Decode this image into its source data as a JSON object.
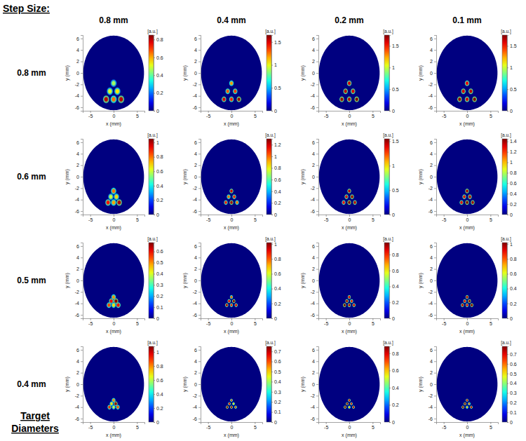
{
  "figure": {
    "title": "Step Size:",
    "columns": [
      "0.8 mm",
      "0.4 mm",
      "0.2 mm",
      "0.1 mm"
    ],
    "rows": [
      "0.8 mm",
      "0.6 mm",
      "0.5 mm",
      "0.4 mm"
    ],
    "row_title": [
      "Target",
      "Diameters"
    ]
  },
  "chart_data": [
    {
      "type": "heatmap",
      "xlabel": "x (mm)",
      "ylabel": "y (mm)",
      "xlim": [
        -6.6,
        6.6
      ],
      "ylim": [
        -6.6,
        6.6
      ],
      "xticks": [
        -5,
        0,
        5
      ],
      "yticks": [
        -6,
        -4,
        -2,
        0,
        2,
        4,
        6
      ],
      "field_radius": 6.5,
      "colorbar": {
        "label": "[a.u.]",
        "range": [
          0,
          0.85
        ],
        "ticks": [
          0,
          0.2,
          0.4,
          0.6,
          0.8
        ]
      },
      "spots": {
        "x": [
          0,
          -0.8,
          0.8,
          -1.6,
          0,
          1.6
        ],
        "y": [
          -1.8,
          -3.2,
          -3.2,
          -4.6,
          -4.6,
          -4.6
        ],
        "values": [
          0.45,
          0.5,
          0.55,
          0.8,
          0.65,
          0.8
        ],
        "sizes": [
          1.6,
          1.6,
          1.6,
          1.6,
          1.6,
          1.6
        ]
      }
    },
    {
      "type": "heatmap",
      "xlabel": "x (mm)",
      "ylabel": "y (mm)",
      "xlim": [
        -6.6,
        6.6
      ],
      "ylim": [
        -6.6,
        6.6
      ],
      "xticks": [
        -5,
        0,
        5
      ],
      "yticks": [
        -6,
        -4,
        -2,
        0,
        2,
        4,
        6
      ],
      "field_radius": 6.5,
      "colorbar": {
        "label": "[a.u.]",
        "range": [
          0,
          1.65
        ],
        "ticks": [
          0,
          0.5,
          1,
          1.5
        ]
      },
      "spots": {
        "x": [
          0,
          -0.8,
          0.8,
          -1.6,
          0,
          1.6
        ],
        "y": [
          -1.8,
          -3.2,
          -3.2,
          -4.6,
          -4.6,
          -4.6
        ],
        "values": [
          1.2,
          1.3,
          1.35,
          1.5,
          1.4,
          1.6
        ],
        "sizes": [
          1.2,
          1.2,
          1.2,
          1.2,
          1.2,
          1.2
        ]
      }
    },
    {
      "type": "heatmap",
      "xlabel": "x (mm)",
      "ylabel": "y (mm)",
      "xlim": [
        -6.6,
        6.6
      ],
      "ylim": [
        -6.6,
        6.6
      ],
      "xticks": [
        -5,
        0,
        5
      ],
      "yticks": [
        -6,
        -4,
        -2,
        0,
        2,
        4,
        6
      ],
      "field_radius": 6.5,
      "colorbar": {
        "label": "[a.u.]",
        "range": [
          0,
          1.75
        ],
        "ticks": [
          0,
          0.5,
          1,
          1.5
        ]
      },
      "spots": {
        "x": [
          0,
          -0.8,
          0.8,
          -1.6,
          0,
          1.6
        ],
        "y": [
          -1.8,
          -3.2,
          -3.2,
          -4.6,
          -4.6,
          -4.6
        ],
        "values": [
          1.6,
          1.65,
          1.6,
          1.7,
          1.65,
          1.75
        ],
        "sizes": [
          1.2,
          1.2,
          1.2,
          1.2,
          1.2,
          1.2
        ]
      }
    },
    {
      "type": "heatmap",
      "xlabel": "x (mm)",
      "ylabel": "y (mm)",
      "xlim": [
        -6.6,
        6.6
      ],
      "ylim": [
        -6.6,
        6.6
      ],
      "xticks": [
        -5,
        0,
        5
      ],
      "yticks": [
        -6,
        -4,
        -2,
        0,
        2,
        4,
        6
      ],
      "field_radius": 6.5,
      "colorbar": {
        "label": "[a.u.]",
        "range": [
          0,
          1.75
        ],
        "ticks": [
          0,
          0.5,
          1,
          1.5
        ]
      },
      "spots": {
        "x": [
          0,
          -0.8,
          0.8,
          -1.6,
          0,
          1.6
        ],
        "y": [
          -1.8,
          -3.2,
          -3.2,
          -4.6,
          -4.6,
          -4.6
        ],
        "values": [
          1.55,
          1.6,
          1.65,
          1.7,
          1.6,
          1.75
        ],
        "sizes": [
          1.2,
          1.2,
          1.2,
          1.2,
          1.2,
          1.2
        ]
      }
    },
    {
      "type": "heatmap",
      "xlabel": "x (mm)",
      "ylabel": "y (mm)",
      "xlim": [
        -6.6,
        6.6
      ],
      "ylim": [
        -6.6,
        6.6
      ],
      "xticks": [
        -5,
        0,
        5
      ],
      "yticks": [
        -6,
        -4,
        -2,
        0,
        2,
        4,
        6
      ],
      "field_radius": 6.5,
      "colorbar": {
        "label": "[a.u.]",
        "range": [
          0,
          1.05
        ],
        "ticks": [
          0,
          0.2,
          0.4,
          0.6,
          0.8,
          1
        ]
      },
      "spots": {
        "x": [
          0,
          -0.6,
          0.6,
          -1.2,
          0,
          1.2
        ],
        "y": [
          -2.5,
          -3.5,
          -3.5,
          -4.5,
          -4.5,
          -4.5
        ],
        "values": [
          0.8,
          0.6,
          0.7,
          0.9,
          0.75,
          1.0
        ],
        "sizes": [
          1.4,
          1.4,
          1.4,
          1.4,
          1.4,
          1.4
        ]
      }
    },
    {
      "type": "heatmap",
      "xlabel": "x (mm)",
      "ylabel": "y (mm)",
      "xlim": [
        -6.6,
        6.6
      ],
      "ylim": [
        -6.6,
        6.6
      ],
      "xticks": [
        -5,
        0,
        5
      ],
      "yticks": [
        -6,
        -4,
        -2,
        0,
        2,
        4,
        6
      ],
      "field_radius": 6.5,
      "colorbar": {
        "label": "[a.u.]",
        "range": [
          0,
          1.3
        ],
        "ticks": [
          0,
          0.2,
          0.4,
          0.6,
          0.8,
          1,
          1.2
        ]
      },
      "spots": {
        "x": [
          0,
          -0.6,
          0.6,
          -1.2,
          0,
          1.2
        ],
        "y": [
          -2.5,
          -3.5,
          -3.5,
          -4.5,
          -4.5,
          -4.5
        ],
        "values": [
          1.2,
          1.0,
          1.1,
          1.1,
          1.25,
          1.0
        ],
        "sizes": [
          1.0,
          1.0,
          1.0,
          1.0,
          1.0,
          1.0
        ]
      }
    },
    {
      "type": "heatmap",
      "xlabel": "x (mm)",
      "ylabel": "y (mm)",
      "xlim": [
        -6.6,
        6.6
      ],
      "ylim": [
        -6.6,
        6.6
      ],
      "xticks": [
        -5,
        0,
        5
      ],
      "yticks": [
        -6,
        -4,
        -2,
        0,
        2,
        4,
        6
      ],
      "field_radius": 6.5,
      "colorbar": {
        "label": "[a.u.]",
        "range": [
          0,
          1.55
        ],
        "ticks": [
          0,
          0.5,
          1,
          1.5
        ]
      },
      "spots": {
        "x": [
          0,
          -0.6,
          0.6,
          -1.2,
          0,
          1.2
        ],
        "y": [
          -2.5,
          -3.5,
          -3.5,
          -4.5,
          -4.5,
          -4.5
        ],
        "values": [
          1.45,
          1.4,
          1.5,
          1.35,
          1.55,
          1.45
        ],
        "sizes": [
          1.0,
          1.0,
          1.0,
          1.0,
          1.0,
          1.0
        ]
      }
    },
    {
      "type": "heatmap",
      "xlabel": "x (mm)",
      "ylabel": "y (mm)",
      "xlim": [
        -6.6,
        6.6
      ],
      "ylim": [
        -6.6,
        6.6
      ],
      "xticks": [
        -5,
        0,
        5
      ],
      "yticks": [
        -6,
        -4,
        -2,
        0,
        2,
        4,
        6
      ],
      "field_radius": 6.5,
      "colorbar": {
        "label": "[a.u.]",
        "range": [
          0,
          1.45
        ],
        "ticks": [
          0,
          0.2,
          0.4,
          0.6,
          0.8,
          1,
          1.2,
          1.4
        ]
      },
      "spots": {
        "x": [
          0,
          -0.6,
          0.6,
          -1.2,
          0,
          1.2
        ],
        "y": [
          -2.5,
          -3.5,
          -3.5,
          -4.5,
          -4.5,
          -4.5
        ],
        "values": [
          1.4,
          1.3,
          1.35,
          1.3,
          1.45,
          1.4
        ],
        "sizes": [
          1.0,
          1.0,
          1.0,
          1.0,
          1.0,
          1.0
        ]
      }
    },
    {
      "type": "heatmap",
      "xlabel": "x (mm)",
      "ylabel": "y (mm)",
      "xlim": [
        -6.6,
        6.6
      ],
      "ylim": [
        -6.6,
        6.6
      ],
      "xticks": [
        -5,
        0,
        5
      ],
      "yticks": [
        -6,
        -4,
        -2,
        0,
        2,
        4,
        6
      ],
      "field_radius": 6.5,
      "colorbar": {
        "label": "[a.u.]",
        "range": [
          0,
          0.68
        ],
        "ticks": [
          0,
          0.1,
          0.2,
          0.3,
          0.4,
          0.5,
          0.6
        ]
      },
      "spots": {
        "x": [
          0,
          -0.5,
          0.5,
          -1,
          0,
          1
        ],
        "y": [
          -2.9,
          -3.6,
          -3.6,
          -4.3,
          -4.3,
          -4.3
        ],
        "values": [
          0.5,
          0.6,
          0.68,
          0.55,
          0.45,
          0.6
        ],
        "sizes": [
          1.2,
          1.2,
          1.2,
          1.2,
          1.2,
          1.2
        ]
      }
    },
    {
      "type": "heatmap",
      "xlabel": "x (mm)",
      "ylabel": "y (mm)",
      "xlim": [
        -6.6,
        6.6
      ],
      "ylim": [
        -6.6,
        6.6
      ],
      "xticks": [
        -5,
        0,
        5
      ],
      "yticks": [
        -6,
        -4,
        -2,
        0,
        2,
        4,
        6
      ],
      "field_radius": 6.5,
      "colorbar": {
        "label": "[a.u.]",
        "range": [
          0,
          1.02
        ],
        "ticks": [
          0,
          0.2,
          0.4,
          0.6,
          0.8,
          1
        ]
      },
      "spots": {
        "x": [
          0,
          -0.5,
          0.5,
          -1,
          0,
          1
        ],
        "y": [
          -2.9,
          -3.6,
          -3.6,
          -4.3,
          -4.3,
          -4.3
        ],
        "values": [
          0.8,
          0.9,
          1.0,
          0.95,
          0.85,
          0.9
        ],
        "sizes": [
          0.85,
          0.85,
          0.85,
          0.85,
          0.85,
          0.85
        ]
      }
    },
    {
      "type": "heatmap",
      "xlabel": "x (mm)",
      "ylabel": "y (mm)",
      "xlim": [
        -6.6,
        6.6
      ],
      "ylim": [
        -6.6,
        6.6
      ],
      "xticks": [
        -5,
        0,
        5
      ],
      "yticks": [
        -6,
        -4,
        -2,
        0,
        2,
        4,
        6
      ],
      "field_radius": 6.5,
      "colorbar": {
        "label": "[a.u.]",
        "range": [
          0,
          0.95
        ],
        "ticks": [
          0,
          0.2,
          0.4,
          0.6,
          0.8
        ]
      },
      "spots": {
        "x": [
          0,
          -0.5,
          0.5,
          -1,
          0,
          1
        ],
        "y": [
          -2.9,
          -3.6,
          -3.6,
          -4.3,
          -4.3,
          -4.3
        ],
        "values": [
          0.85,
          0.9,
          0.8,
          0.95,
          0.9,
          0.85
        ],
        "sizes": [
          0.85,
          0.85,
          0.85,
          0.85,
          0.85,
          0.85
        ]
      }
    },
    {
      "type": "heatmap",
      "xlabel": "x (mm)",
      "ylabel": "y (mm)",
      "xlim": [
        -6.6,
        6.6
      ],
      "ylim": [
        -6.6,
        6.6
      ],
      "xticks": [
        -5,
        0,
        5
      ],
      "yticks": [
        -6,
        -4,
        -2,
        0,
        2,
        4,
        6
      ],
      "field_radius": 6.5,
      "colorbar": {
        "label": "[a.u.]",
        "range": [
          0,
          1.02
        ],
        "ticks": [
          0,
          0.2,
          0.4,
          0.6,
          0.8,
          1
        ]
      },
      "spots": {
        "x": [
          0,
          -0.5,
          0.5,
          -1,
          0,
          1
        ],
        "y": [
          -2.9,
          -3.6,
          -3.6,
          -4.3,
          -4.3,
          -4.3
        ],
        "values": [
          0.95,
          0.9,
          1.0,
          0.95,
          0.9,
          1.0
        ],
        "sizes": [
          0.85,
          0.85,
          0.85,
          0.85,
          0.85,
          0.85
        ]
      }
    },
    {
      "type": "heatmap",
      "xlabel": "x (mm)",
      "ylabel": "y (mm)",
      "xlim": [
        -6.6,
        6.6
      ],
      "ylim": [
        -6.6,
        6.6
      ],
      "xticks": [
        -5,
        0,
        5
      ],
      "yticks": [
        -6,
        -4,
        -2,
        0,
        2,
        4,
        6
      ],
      "field_radius": 6.5,
      "colorbar": {
        "label": "[a.u.]",
        "range": [
          0,
          1.08
        ],
        "ticks": [
          0,
          0.2,
          0.4,
          0.6,
          0.8,
          1
        ]
      },
      "spots": {
        "x": [
          0,
          -0.45,
          0.45,
          -0.9,
          0,
          0.9
        ],
        "y": [
          -2.8,
          -3.4,
          -3.4,
          -4,
          -4,
          -4
        ],
        "values": [
          0.8,
          0.7,
          1.05,
          0.9,
          0.6,
          0.85
        ],
        "sizes": [
          1.0,
          1.0,
          1.0,
          1.0,
          1.0,
          1.0
        ]
      }
    },
    {
      "type": "heatmap",
      "xlabel": "x (mm)",
      "ylabel": "y (mm)",
      "xlim": [
        -6.6,
        6.6
      ],
      "ylim": [
        -6.6,
        6.6
      ],
      "xticks": [
        -5,
        0,
        5
      ],
      "yticks": [
        -6,
        -4,
        -2,
        0,
        2,
        4,
        6
      ],
      "field_radius": 6.5,
      "colorbar": {
        "label": "[a.u.]",
        "range": [
          0,
          0.75
        ],
        "ticks": [
          0,
          0.1,
          0.2,
          0.3,
          0.4,
          0.5,
          0.6,
          0.7
        ]
      },
      "spots": {
        "x": [
          0,
          -0.45,
          0.45,
          -0.9,
          0,
          0.9
        ],
        "y": [
          -2.8,
          -3.4,
          -3.4,
          -4,
          -4,
          -4
        ],
        "values": [
          0.6,
          0.65,
          0.5,
          0.72,
          0.7,
          0.6
        ],
        "sizes": [
          0.7,
          0.7,
          0.7,
          0.7,
          0.7,
          0.7
        ]
      }
    },
    {
      "type": "heatmap",
      "xlabel": "x (mm)",
      "ylabel": "y (mm)",
      "xlim": [
        -6.6,
        6.6
      ],
      "ylim": [
        -6.6,
        6.6
      ],
      "xticks": [
        -5,
        0,
        5
      ],
      "yticks": [
        -6,
        -4,
        -2,
        0,
        2,
        4,
        6
      ],
      "field_radius": 6.5,
      "colorbar": {
        "label": "[a.u.]",
        "range": [
          0,
          0.88
        ],
        "ticks": [
          0,
          0.2,
          0.4,
          0.6,
          0.8
        ]
      },
      "spots": {
        "x": [
          0,
          -0.45,
          0.45,
          -0.9,
          0,
          0.9
        ],
        "y": [
          -2.8,
          -3.4,
          -3.4,
          -4,
          -4,
          -4
        ],
        "values": [
          0.8,
          0.85,
          0.75,
          0.85,
          0.6,
          0.8
        ],
        "sizes": [
          0.7,
          0.7,
          0.7,
          0.7,
          0.7,
          0.7
        ]
      }
    },
    {
      "type": "heatmap",
      "xlabel": "x (mm)",
      "ylabel": "y (mm)",
      "xlim": [
        -6.6,
        6.6
      ],
      "ylim": [
        -6.6,
        6.6
      ],
      "xticks": [
        -5,
        0,
        5
      ],
      "yticks": [
        -6,
        -4,
        -2,
        0,
        2,
        4,
        6
      ],
      "field_radius": 6.5,
      "colorbar": {
        "label": "[a.u.]",
        "range": [
          0,
          0.78
        ],
        "ticks": [
          0,
          0.1,
          0.2,
          0.3,
          0.4,
          0.5,
          0.6,
          0.7
        ]
      },
      "spots": {
        "x": [
          0,
          -0.45,
          0.45,
          -0.9,
          0,
          0.9
        ],
        "y": [
          -2.8,
          -3.4,
          -3.4,
          -4,
          -4,
          -4
        ],
        "values": [
          0.7,
          0.75,
          0.6,
          0.75,
          0.55,
          0.7
        ],
        "sizes": [
          0.7,
          0.7,
          0.7,
          0.7,
          0.7,
          0.7
        ]
      }
    }
  ]
}
